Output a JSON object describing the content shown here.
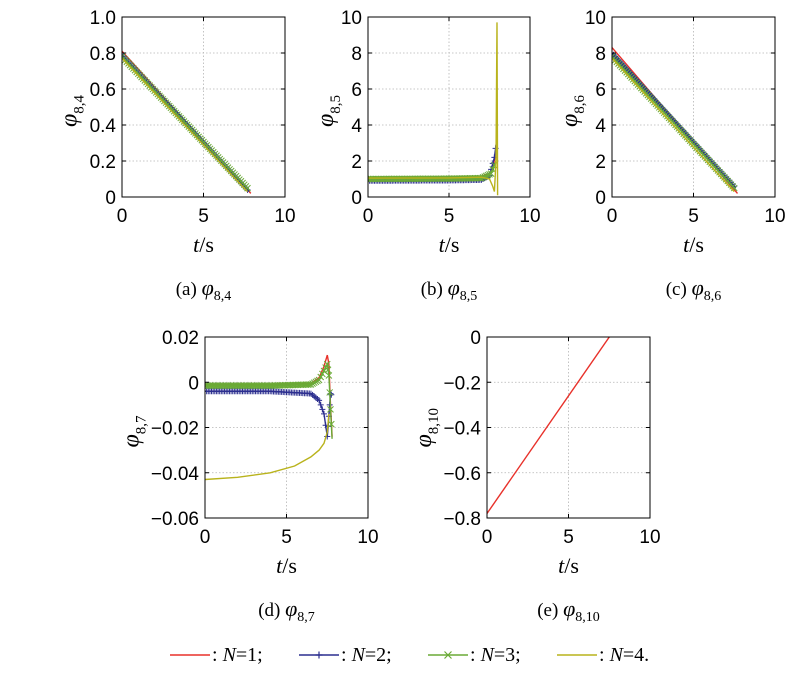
{
  "colors": {
    "N1": "#e8312a",
    "N2": "#2c2f8f",
    "N3": "#6aaa36",
    "N4": "#b9b31c"
  },
  "legend": [
    {
      "label": ": N=1;",
      "color": "#e8312a",
      "marker": "none"
    },
    {
      "label": ": N=2;",
      "color": "#2c2f8f",
      "marker": "plus"
    },
    {
      "label": ": N=3;",
      "color": "#6aaa36",
      "marker": "x"
    },
    {
      "label": ": N=4.",
      "color": "#b9b31c",
      "marker": "none"
    }
  ],
  "chart_data": [
    {
      "type": "line",
      "caption": "(a) φ8,4",
      "xlabel": "t/s",
      "ylabel": "φ8,4",
      "xlim": [
        0,
        10
      ],
      "ylim": [
        0,
        1.0
      ],
      "xticks": [
        "0",
        "5",
        "10"
      ],
      "yticks": [
        "0",
        "0.2",
        "0.4",
        "0.6",
        "0.8",
        "1.0"
      ],
      "grid": true,
      "series": [
        {
          "name": "N=1",
          "x": [
            0,
            7.9
          ],
          "y": [
            0.81,
            0.02
          ]
        },
        {
          "name": "N=2",
          "x": [
            0,
            7.8
          ],
          "y": [
            0.79,
            0.03
          ]
        },
        {
          "name": "N=3",
          "x": [
            0,
            7.8
          ],
          "y": [
            0.78,
            0.04
          ]
        },
        {
          "name": "N=4",
          "x": [
            0,
            7.7
          ],
          "y": [
            0.77,
            0.03
          ]
        }
      ]
    },
    {
      "type": "line",
      "caption": "(b) φ8,5",
      "xlabel": "t/s",
      "ylabel": "φ8,5",
      "xlim": [
        0,
        10
      ],
      "ylim": [
        0,
        10
      ],
      "xticks": [
        "0",
        "5",
        "10"
      ],
      "yticks": [
        "0",
        "2",
        "4",
        "6",
        "8",
        "10"
      ],
      "grid": true,
      "series": [
        {
          "name": "N=1",
          "x": [
            0,
            5,
            7.0,
            7.6,
            7.85,
            7.95
          ],
          "y": [
            1.1,
            1.12,
            1.15,
            1.35,
            2.2,
            3.0
          ]
        },
        {
          "name": "N=2",
          "x": [
            0,
            5,
            7.0,
            7.5,
            7.8,
            7.95
          ],
          "y": [
            0.9,
            0.92,
            0.95,
            1.2,
            2.2,
            3.2
          ]
        },
        {
          "name": "N=3",
          "x": [
            0,
            5,
            7.0,
            7.6,
            7.9
          ],
          "y": [
            1.0,
            1.02,
            1.05,
            1.3,
            2.0
          ]
        },
        {
          "name": "N=4",
          "x": [
            0,
            5,
            7.0,
            7.5,
            7.7,
            7.8,
            7.9,
            7.93,
            7.96,
            8.0
          ],
          "y": [
            1.05,
            1.06,
            1.1,
            1.0,
            0.6,
            0.3,
            2.0,
            6.0,
            9.7,
            0.1
          ]
        }
      ]
    },
    {
      "type": "line",
      "caption": "(c) φ8,6",
      "xlabel": "t/s",
      "ylabel": "φ8,6",
      "xlim": [
        0,
        10
      ],
      "ylim": [
        0,
        10
      ],
      "xticks": [
        "0",
        "5",
        "10"
      ],
      "yticks": [
        "0",
        "2",
        "4",
        "6",
        "8",
        "10"
      ],
      "grid": true,
      "series": [
        {
          "name": "N=1",
          "x": [
            0,
            7.7
          ],
          "y": [
            8.3,
            0.2
          ]
        },
        {
          "name": "N=2",
          "x": [
            0,
            7.6
          ],
          "y": [
            8.0,
            0.5
          ]
        },
        {
          "name": "N=3",
          "x": [
            0,
            7.6
          ],
          "y": [
            7.8,
            0.4
          ]
        },
        {
          "name": "N=4",
          "x": [
            0,
            7.5
          ],
          "y": [
            7.7,
            0.3
          ]
        }
      ]
    },
    {
      "type": "line",
      "caption": "(d) φ8,7",
      "xlabel": "t/s",
      "ylabel": "φ8,7",
      "xlim": [
        0,
        10
      ],
      "ylim": [
        -0.06,
        0.02
      ],
      "xticks": [
        "0",
        "5",
        "10"
      ],
      "yticks": [
        "−0.06",
        "−0.04",
        "−0.02",
        "0",
        "0.02"
      ],
      "grid": true,
      "series": [
        {
          "name": "N=1",
          "x": [
            0,
            4,
            6.5,
            7.0,
            7.3,
            7.5,
            7.6,
            7.7,
            7.8
          ],
          "y": [
            -0.001,
            -0.001,
            -0.0005,
            0.002,
            0.007,
            0.012,
            0.008,
            -0.01,
            -0.024
          ]
        },
        {
          "name": "N=2",
          "x": [
            0,
            4,
            6.5,
            7.0,
            7.3,
            7.5,
            7.6,
            7.7,
            7.8
          ],
          "y": [
            -0.004,
            -0.004,
            -0.005,
            -0.008,
            -0.014,
            -0.024,
            -0.015,
            -0.005,
            -0.006
          ]
        },
        {
          "name": "N=3",
          "x": [
            0,
            4,
            6.5,
            7.0,
            7.3,
            7.5,
            7.6,
            7.7,
            7.8
          ],
          "y": [
            -0.0015,
            -0.0015,
            -0.001,
            0.001,
            0.005,
            0.008,
            0.003,
            -0.012,
            -0.025
          ]
        },
        {
          "name": "N=4",
          "x": [
            0,
            2,
            4,
            5.5,
            6.5,
            7.0,
            7.3,
            7.5,
            7.6
          ],
          "y": [
            -0.043,
            -0.042,
            -0.04,
            -0.037,
            -0.033,
            -0.03,
            -0.027,
            -0.022,
            -0.014
          ]
        }
      ]
    },
    {
      "type": "line",
      "caption": "(e) φ8,10",
      "xlabel": "t/s",
      "ylabel": "φ8,10",
      "xlim": [
        0,
        10
      ],
      "ylim": [
        -0.8,
        0
      ],
      "xticks": [
        "0",
        "5",
        "10"
      ],
      "yticks": [
        "−0.8",
        "−0.6",
        "−0.4",
        "−0.2",
        "0"
      ],
      "grid": true,
      "series": [
        {
          "name": "N=1",
          "x": [
            0,
            7.5
          ],
          "y": [
            -0.78,
            0.0
          ]
        }
      ]
    }
  ]
}
